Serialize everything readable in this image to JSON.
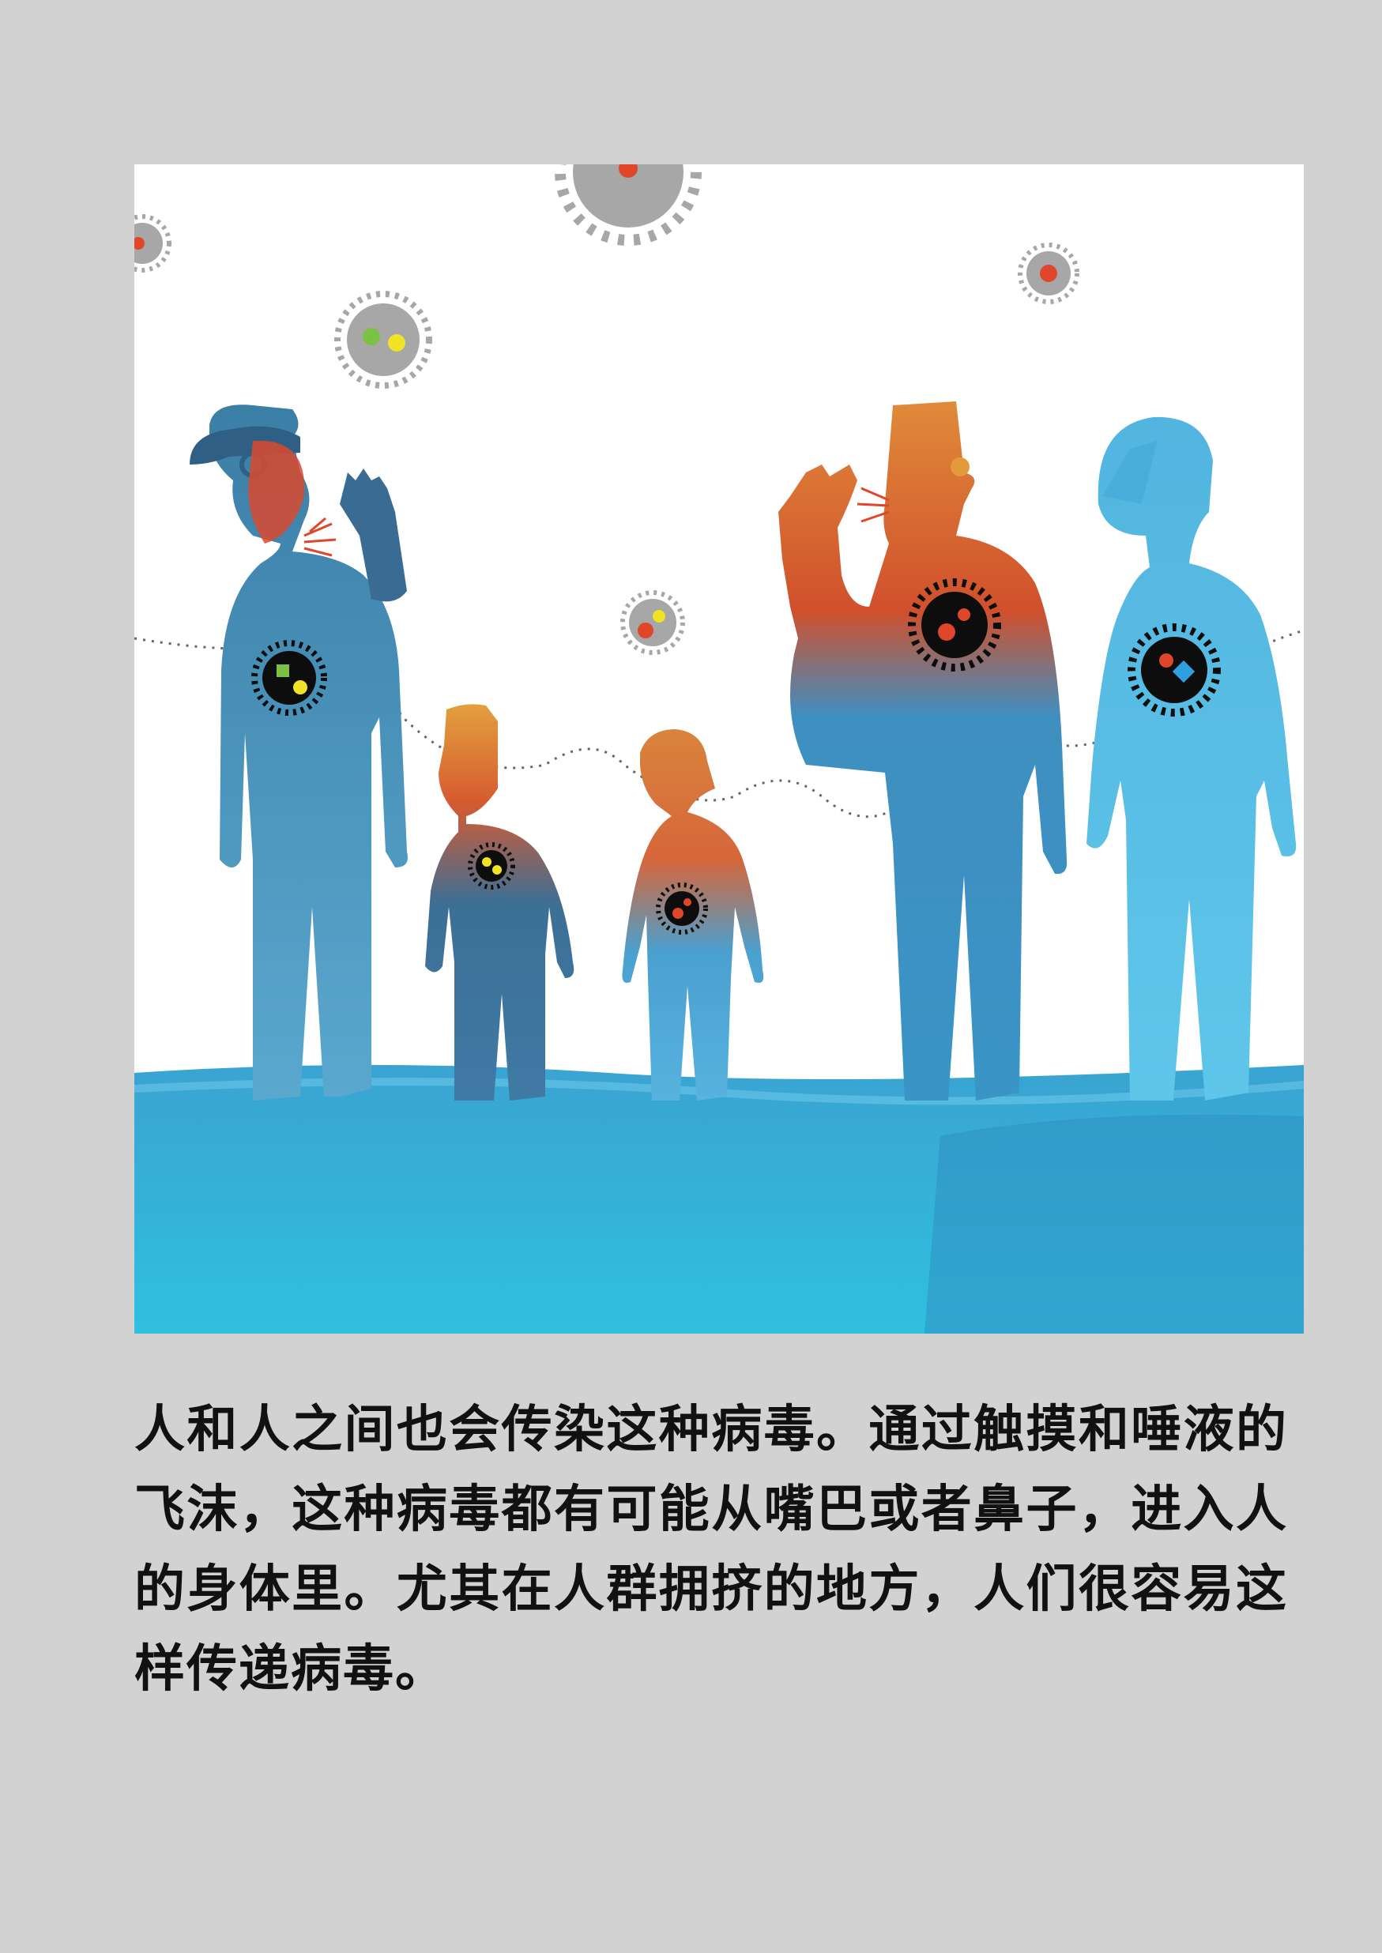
{
  "page": {
    "background": "#d3d2d3"
  },
  "illustration": {
    "icons": [
      "virus-icon",
      "person-figure",
      "sneeze-spray",
      "hand-icon",
      "transmission-path"
    ],
    "colors": {
      "figure_blue": "#3f8fc0",
      "figure_light_blue": "#5cc0e6",
      "figure_dark_blue": "#2f6f95",
      "accent_red": "#e0472a",
      "accent_orange": "#e39a3b",
      "virus_grey": "#a7a7a7",
      "virus_black": "#0d0d0d",
      "ground": "#36a9d6"
    }
  },
  "story": {
    "text": "人和人之间也会传染这种病毒。通过触摸和唾液的飞沫，这种病毒都有可能从嘴巴或者鼻子，进入人的身体里。尤其在人群拥挤的地方，人们很容易这样传递病毒。"
  }
}
